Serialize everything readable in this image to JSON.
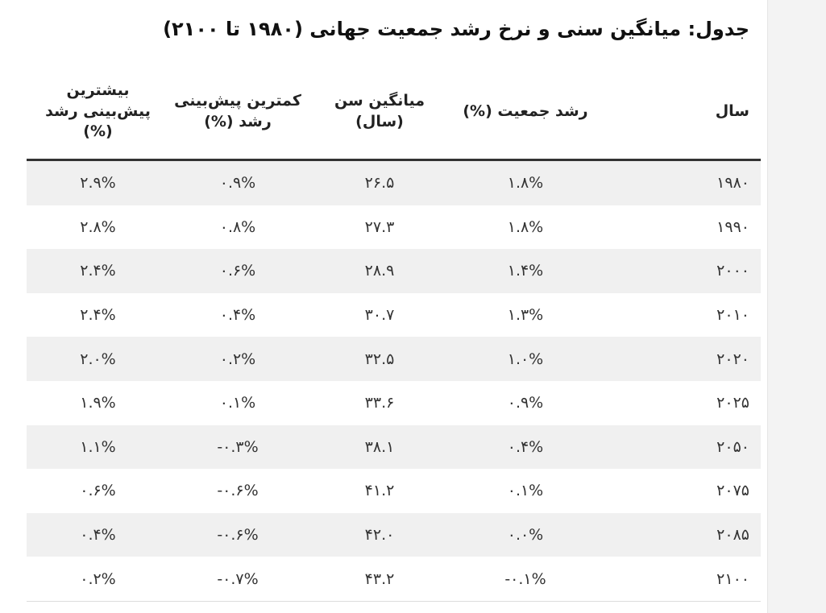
{
  "title": "جدول: میانگین سنی و نرخ رشد جمعیت جهانی (۱۹۸۰ تا ۲۱۰۰)",
  "table": {
    "headers": {
      "year": "سال",
      "growth": "رشد جمعیت (%)",
      "median_age": "میانگین سن (سال)",
      "low_forecast": "کمترین پیش‌بینی رشد (%)",
      "high_forecast": "بیشترین پیش‌بینی رشد (%)"
    },
    "rows": [
      {
        "year": "۱۹۸۰",
        "growth": "۱.۸%",
        "median_age": "۲۶.۵",
        "low_forecast": "۰.۹%",
        "high_forecast": "۲.۹%"
      },
      {
        "year": "۱۹۹۰",
        "growth": "۱.۸%",
        "median_age": "۲۷.۳",
        "low_forecast": "۰.۸%",
        "high_forecast": "۲.۸%"
      },
      {
        "year": "۲۰۰۰",
        "growth": "۱.۴%",
        "median_age": "۲۸.۹",
        "low_forecast": "۰.۶%",
        "high_forecast": "۲.۴%"
      },
      {
        "year": "۲۰۱۰",
        "growth": "۱.۳%",
        "median_age": "۳۰.۷",
        "low_forecast": "۰.۴%",
        "high_forecast": "۲.۴%"
      },
      {
        "year": "۲۰۲۰",
        "growth": "۱.۰%",
        "median_age": "۳۲.۵",
        "low_forecast": "۰.۲%",
        "high_forecast": "۲.۰%"
      },
      {
        "year": "۲۰۲۵",
        "growth": "۰.۹%",
        "median_age": "۳۳.۶",
        "low_forecast": "۰.۱%",
        "high_forecast": "۱.۹%"
      },
      {
        "year": "۲۰۵۰",
        "growth": "۰.۴%",
        "median_age": "۳۸.۱",
        "low_forecast": "۰.۳%-",
        "high_forecast": "۱.۱%"
      },
      {
        "year": "۲۰۷۵",
        "growth": "۰.۱%",
        "median_age": "۴۱.۲",
        "low_forecast": "۰.۶%-",
        "high_forecast": "۰.۶%"
      },
      {
        "year": "۲۰۸۵",
        "growth": "۰.۰%",
        "median_age": "۴۲.۰",
        "low_forecast": "۰.۶%-",
        "high_forecast": "۰.۴%"
      },
      {
        "year": "۲۱۰۰",
        "growth": "۰.۱%-",
        "median_age": "۴۳.۲",
        "low_forecast": "۰.۷%-",
        "high_forecast": "۰.۲%"
      }
    ]
  }
}
